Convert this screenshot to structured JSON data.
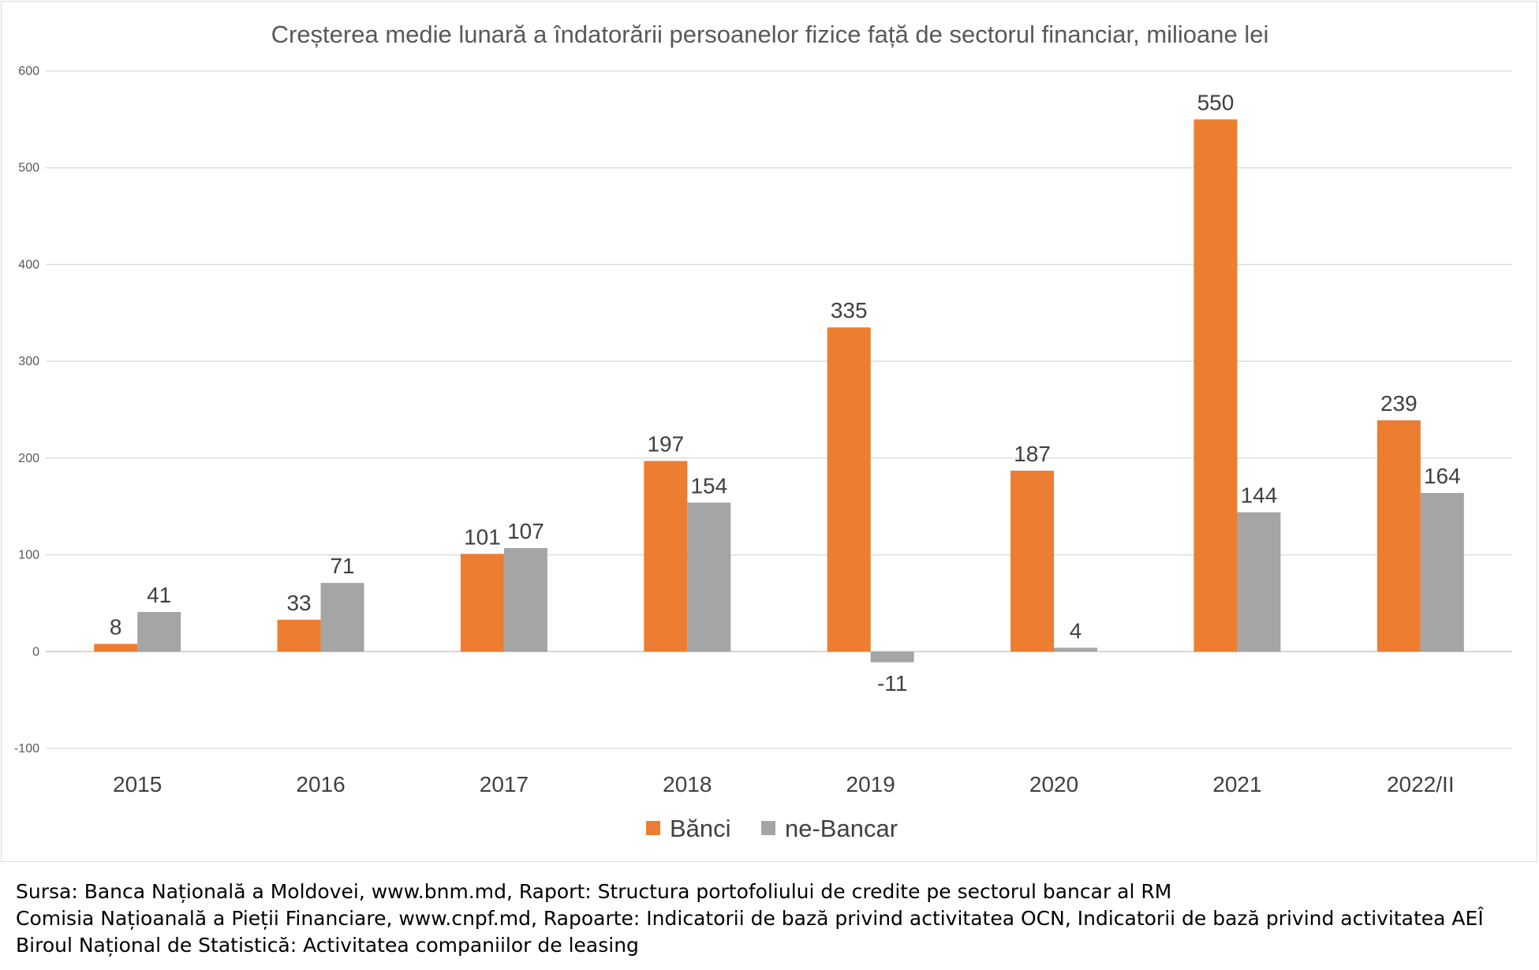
{
  "chart_data": {
    "type": "bar",
    "title": "Creșterea medie lunară a îndatorării persoanelor fizice față de sectorul financiar, milioane lei",
    "categories": [
      "2015",
      "2016",
      "2017",
      "2018",
      "2019",
      "2020",
      "2021",
      "2022/II"
    ],
    "series": [
      {
        "name": "Bănci",
        "color": "#ED7D31",
        "values": [
          8,
          33,
          101,
          197,
          335,
          187,
          550,
          239
        ]
      },
      {
        "name": "ne-Bancar",
        "color": "#A5A5A5",
        "values": [
          41,
          71,
          107,
          154,
          -11,
          4,
          144,
          164
        ]
      }
    ],
    "ylim": [
      -100,
      600
    ],
    "yticks": [
      -100,
      0,
      100,
      200,
      300,
      400,
      500,
      600
    ],
    "grid": true,
    "legend": "bottom",
    "data_labels": true
  },
  "sources": [
    "Sursa: Banca Națională a Moldovei, www.bnm.md, Raport: Structura portofoliului de credite pe sectorul bancar al RM",
    "Comisia Națioanală a Pieții Financiare, www.cnpf.md, Rapoarte: Indicatorii de bază privind activitatea OCN, Indicatorii de bază privind activitatea AEÎ",
    "Biroul Național de Statistică: Activitatea companiilor de leasing"
  ]
}
